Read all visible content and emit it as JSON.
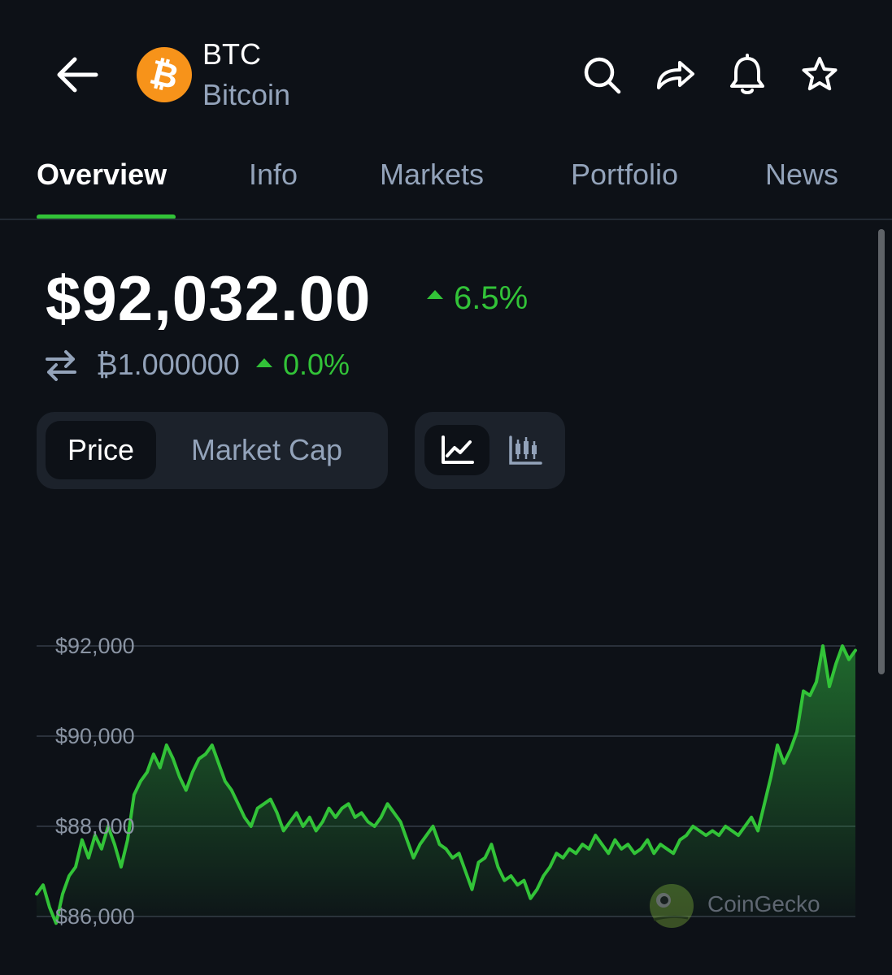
{
  "header": {
    "symbol": "BTC",
    "name": "Bitcoin",
    "logo_glyph": "₿",
    "icons": [
      "back-arrow-icon",
      "search-icon",
      "share-icon",
      "bell-icon",
      "star-icon"
    ]
  },
  "tabs": [
    {
      "label": "Overview",
      "active": true
    },
    {
      "label": "Info",
      "active": false
    },
    {
      "label": "Markets",
      "active": false
    },
    {
      "label": "Portfolio",
      "active": false
    },
    {
      "label": "News",
      "active": false
    }
  ],
  "price": {
    "usd": "$92,032.00",
    "usd_change": "6.5%",
    "btc": "₿1.000000",
    "btc_change": "0.0%"
  },
  "toggles": {
    "metric": [
      {
        "label": "Price",
        "active": true
      },
      {
        "label": "Market Cap",
        "active": false
      }
    ],
    "chart_type": [
      {
        "icon": "line-chart-icon",
        "active": true
      },
      {
        "icon": "candlestick-chart-icon",
        "active": false
      }
    ]
  },
  "colors": {
    "background": "#0d1117",
    "accent_green": "#32c338",
    "muted_text": "#93a3ba",
    "btc_orange": "#f7931a"
  },
  "watermark": "CoinGecko",
  "chart_data": {
    "type": "area",
    "y_ticks": [
      {
        "value": 92000,
        "label": "$92,000"
      },
      {
        "value": 90000,
        "label": "$90,000"
      },
      {
        "value": 88000,
        "label": "$88,000"
      },
      {
        "value": 86000,
        "label": "$86,000"
      }
    ],
    "ylim": [
      86000,
      92000
    ],
    "grid": true,
    "values": [
      86500,
      86700,
      86200,
      85850,
      86500,
      86900,
      87100,
      87700,
      87300,
      87800,
      87500,
      88000,
      87600,
      87100,
      87700,
      88700,
      89000,
      89200,
      89600,
      89300,
      89800,
      89500,
      89100,
      88800,
      89200,
      89500,
      89600,
      89800,
      89400,
      89000,
      88800,
      88500,
      88200,
      88000,
      88400,
      88500,
      88600,
      88300,
      87900,
      88100,
      88300,
      88000,
      88200,
      87900,
      88100,
      88400,
      88200,
      88400,
      88500,
      88200,
      88300,
      88100,
      88000,
      88200,
      88500,
      88300,
      88100,
      87700,
      87300,
      87600,
      87800,
      88000,
      87600,
      87500,
      87300,
      87400,
      87000,
      86600,
      87200,
      87300,
      87600,
      87100,
      86800,
      86900,
      86700,
      86800,
      86400,
      86600,
      86900,
      87100,
      87400,
      87300,
      87500,
      87400,
      87600,
      87500,
      87800,
      87600,
      87400,
      87700,
      87500,
      87600,
      87400,
      87500,
      87700,
      87400,
      87600,
      87500,
      87400,
      87700,
      87800,
      88000,
      87900,
      87800,
      87900,
      87800,
      88000,
      87900,
      87800,
      88000,
      88200,
      87900,
      88500,
      89100,
      89800,
      89400,
      89700,
      90100,
      91000,
      90900,
      91200,
      92000,
      91100,
      91600,
      92000,
      91700,
      91900
    ]
  }
}
